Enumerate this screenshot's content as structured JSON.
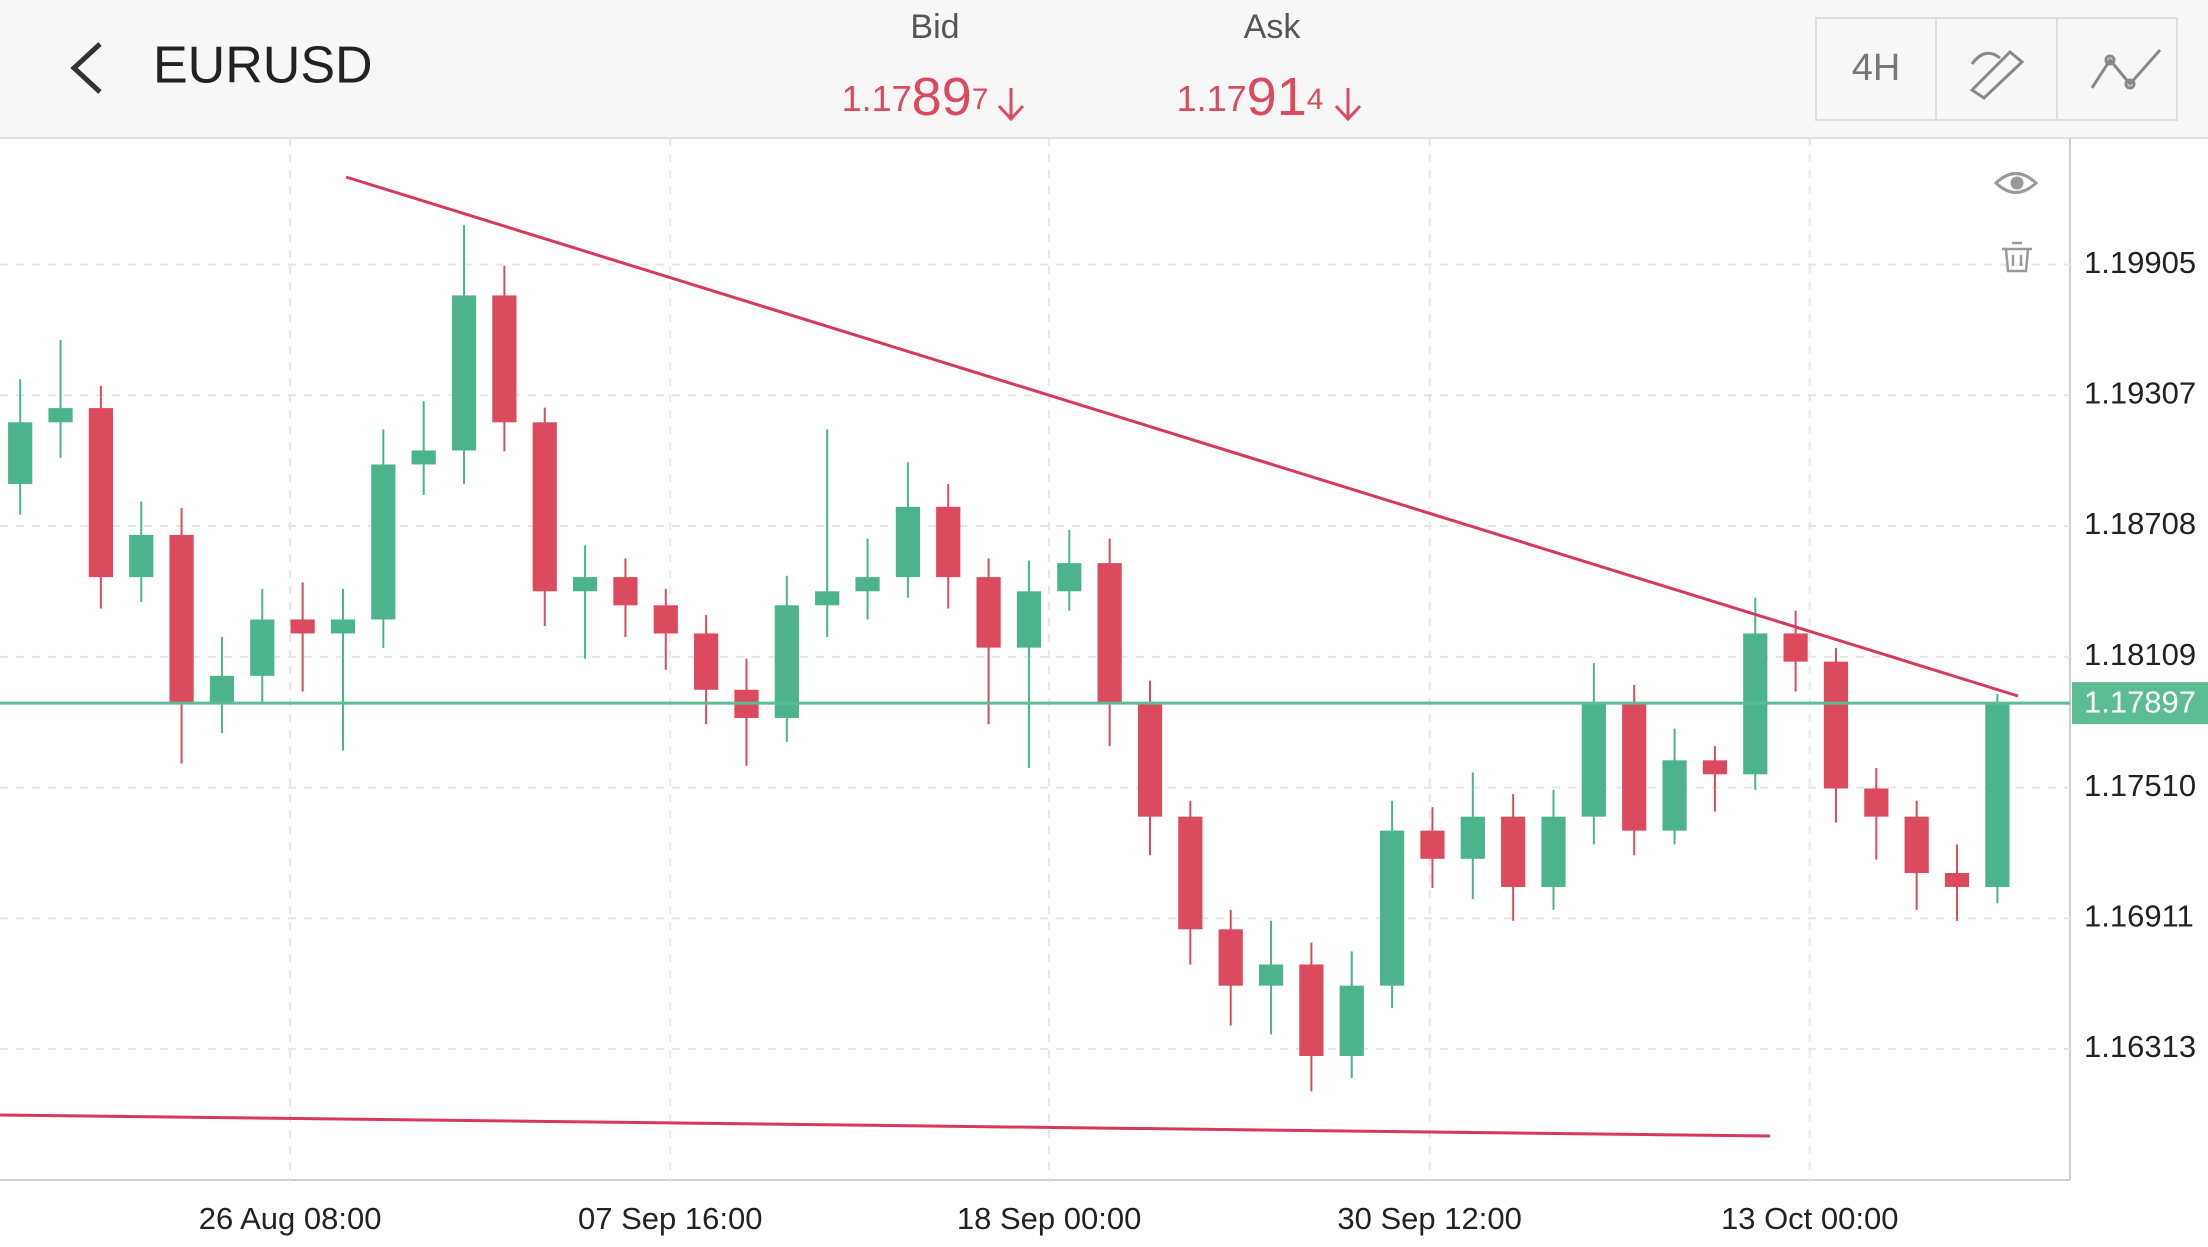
{
  "header": {
    "symbol": "EURUSD",
    "bid_label": "Bid",
    "bid": "1.17897",
    "ask_label": "Ask",
    "ask": "1.17914",
    "timeframe": "4H"
  },
  "chart_data": {
    "type": "candlestick",
    "open": [
      1.189,
      1.19183,
      1.19248,
      1.18474,
      1.18667,
      1.17893,
      1.18022,
      1.1828,
      1.18216,
      1.1828,
      1.1899,
      1.19054,
      1.19764,
      1.19183,
      1.18409,
      1.18474,
      1.18345,
      1.18216,
      1.17958,
      1.17829,
      1.18345,
      1.18409,
      1.18474,
      1.18796,
      1.18474,
      1.18151,
      1.18409,
      1.18538,
      1.17893,
      1.17377,
      1.16861,
      1.16603,
      1.167,
      1.16281,
      1.16603,
      1.17313,
      1.17184,
      1.17377,
      1.17055,
      1.17377,
      1.17893,
      1.17313,
      1.17635,
      1.17571,
      1.18216,
      1.18087,
      1.17506,
      1.17377,
      1.17119,
      1.17055
    ],
    "high": [
      1.1938,
      1.1956,
      1.1935,
      1.1882,
      1.1879,
      1.182,
      1.1842,
      1.1845,
      1.1842,
      1.1915,
      1.1928,
      1.20086,
      1.199,
      1.1925,
      1.1862,
      1.1856,
      1.1842,
      1.183,
      1.181,
      1.1848,
      1.1915,
      1.1865,
      1.19,
      1.189,
      1.1856,
      1.1855,
      1.1869,
      1.1865,
      1.18,
      1.1745,
      1.1695,
      1.169,
      1.168,
      1.1676,
      1.1745,
      1.1742,
      1.1758,
      1.1748,
      1.175,
      1.1808,
      1.1798,
      1.1778,
      1.177,
      1.1838,
      1.1832,
      1.1815,
      1.176,
      1.1745,
      1.1725,
      1.1794
    ],
    "low": [
      1.1876,
      1.1902,
      1.1833,
      1.1836,
      1.1762,
      1.1776,
      1.179,
      1.1795,
      1.1768,
      1.1815,
      1.1885,
      1.189,
      1.1905,
      1.1825,
      1.181,
      1.182,
      1.1805,
      1.178,
      1.1761,
      1.1772,
      1.182,
      1.1828,
      1.1838,
      1.1833,
      1.178,
      1.176,
      1.1832,
      1.177,
      1.172,
      1.167,
      1.1642,
      1.1638,
      1.16119,
      1.1618,
      1.165,
      1.1705,
      1.17,
      1.169,
      1.1695,
      1.1725,
      1.172,
      1.1725,
      1.174,
      1.175,
      1.1795,
      1.1735,
      1.1718,
      1.1695,
      1.169,
      1.1698
    ],
    "close": [
      1.19183,
      1.19248,
      1.18474,
      1.18667,
      1.17893,
      1.18022,
      1.1828,
      1.18216,
      1.1828,
      1.1899,
      1.19054,
      1.19764,
      1.19183,
      1.18409,
      1.18474,
      1.18345,
      1.18216,
      1.17958,
      1.17829,
      1.18345,
      1.18409,
      1.18474,
      1.18796,
      1.18474,
      1.18151,
      1.18409,
      1.18538,
      1.17893,
      1.17377,
      1.16861,
      1.16603,
      1.167,
      1.16281,
      1.16603,
      1.17313,
      1.17184,
      1.17377,
      1.17055,
      1.17377,
      1.17893,
      1.17313,
      1.17635,
      1.17571,
      1.18216,
      1.18087,
      1.17506,
      1.17377,
      1.17119,
      1.17055,
      1.17897
    ],
    "up_color": "#4cb48c",
    "down_color": "#dc4a5e",
    "xlim": [
      -0.5,
      50.8
    ],
    "xticks": [
      {
        "value": 6.69,
        "label": "26 Aug 08:00"
      },
      {
        "value": 16.11,
        "label": "07 Sep 16:00"
      },
      {
        "value": 25.5,
        "label": "18 Sep 00:00"
      },
      {
        "value": 34.93,
        "label": "30 Sep 12:00"
      },
      {
        "value": 44.35,
        "label": "13 Oct 00:00"
      }
    ],
    "ylim": [
      1.15713,
      1.20485
    ],
    "yticks": [
      1.19905,
      1.19307,
      1.18708,
      1.18109,
      {
        "value": 1.1751,
        "label": "1.17510"
      },
      1.16911,
      1.16313
    ],
    "current_price": 1.17897,
    "current_color": "#5cbd94",
    "grid": true
  }
}
